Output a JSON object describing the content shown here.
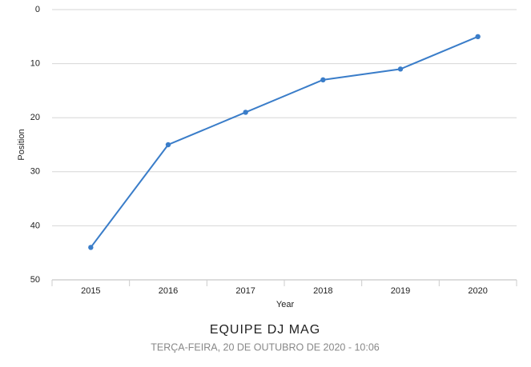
{
  "chart_data": {
    "type": "line",
    "x_label": "Year",
    "y_label": "Position",
    "categories": [
      "2015",
      "2016",
      "2017",
      "2018",
      "2019",
      "2020"
    ],
    "values": [
      44,
      25,
      19,
      13,
      11,
      5
    ],
    "color": "#3a7dc9",
    "ylim": [
      50,
      0
    ],
    "yticks": [
      0,
      10,
      20,
      30,
      40,
      50
    ],
    "grid": true
  },
  "footer": {
    "title": "EQUIPE DJ MAG",
    "subtitle": "TERÇA-FEIRA, 20 DE OUTUBRO DE 2020 - 10:06"
  }
}
